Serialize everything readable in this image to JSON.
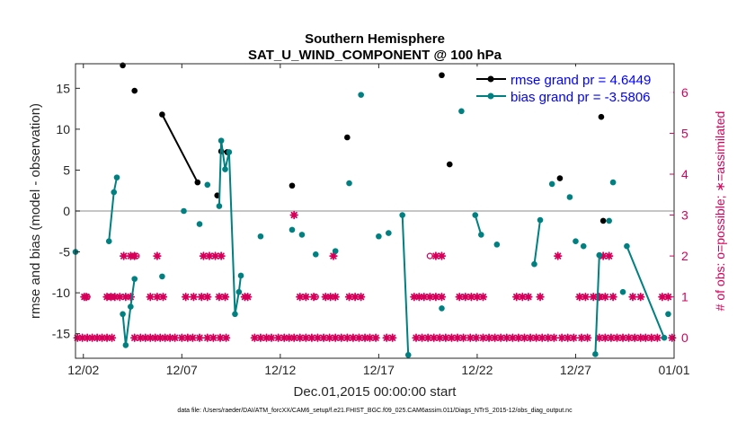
{
  "chart_data": {
    "type": "line",
    "title": "Southern Hemisphere",
    "subtitle": "SAT_U_WIND_COMPONENT @ 100 hPa",
    "xlabel": "Dec.01,2015 00:00:00 start",
    "ylabel": "rmse and bias (model - observation)",
    "y2label": "# of obs: o=possible; ∗=assimilated",
    "xlim": [
      0.6,
      31.0
    ],
    "ylim": [
      -18,
      18
    ],
    "y2lim": [
      -0.5,
      6.7
    ],
    "x_tick_labels": [
      "12/02",
      "12/07",
      "12/12",
      "12/17",
      "12/22",
      "12/27",
      "01/01"
    ],
    "x_ticks": [
      1,
      6,
      11,
      16,
      21,
      26,
      31
    ],
    "y_ticks": [
      -15,
      -10,
      -5,
      0,
      5,
      10,
      15
    ],
    "y2_ticks": [
      0,
      1,
      2,
      3,
      4,
      5,
      6
    ],
    "zero_line": true,
    "grid": false,
    "legend_position": "top-right",
    "colors": {
      "rmse": "#000000",
      "bias": "#008080",
      "obs": "#d6005a",
      "zero": "#b3b3b3",
      "legend_text": "#0000ff"
    },
    "series": [
      {
        "name": "rmse grand pr = 4.6449",
        "key": "rmse",
        "points": [
          [
            3.0,
            17.8
          ],
          [
            3.6,
            14.7
          ],
          [
            5.0,
            11.8
          ],
          [
            6.8,
            3.5
          ],
          [
            7.8,
            1.9
          ],
          [
            8.0,
            7.3
          ],
          [
            8.3,
            7.2
          ],
          [
            11.6,
            3.1
          ],
          [
            14.4,
            9.0
          ],
          [
            19.2,
            16.6
          ],
          [
            19.6,
            5.7
          ],
          [
            25.2,
            4.0
          ],
          [
            27.3,
            11.5
          ],
          [
            27.4,
            -1.2
          ]
        ],
        "segments": [
          [
            2,
            3
          ],
          [
            5,
            6
          ]
        ]
      },
      {
        "name": "bias grand pr = -3.5806",
        "key": "bias",
        "points": [
          [
            0.6,
            -5.0
          ],
          [
            2.3,
            -3.7
          ],
          [
            2.55,
            2.3
          ],
          [
            2.7,
            4.1
          ],
          [
            3.0,
            -12.6
          ],
          [
            3.15,
            -16.4
          ],
          [
            3.4,
            -11.7
          ],
          [
            3.6,
            -8.3
          ],
          [
            5.0,
            -8.0
          ],
          [
            6.1,
            0.0
          ],
          [
            6.9,
            -1.6
          ],
          [
            7.3,
            3.2
          ],
          [
            7.9,
            0.6
          ],
          [
            8.0,
            8.6
          ],
          [
            8.2,
            5.1
          ],
          [
            8.4,
            7.2
          ],
          [
            8.7,
            -12.6
          ],
          [
            8.9,
            -9.9
          ],
          [
            9.0,
            -7.9
          ],
          [
            10.0,
            -3.1
          ],
          [
            11.6,
            -2.3
          ],
          [
            12.1,
            -2.9
          ],
          [
            12.8,
            -5.3
          ],
          [
            13.8,
            -4.9
          ],
          [
            14.5,
            3.4
          ],
          [
            15.1,
            14.2
          ],
          [
            16.0,
            -3.1
          ],
          [
            16.5,
            -2.7
          ],
          [
            17.2,
            -0.5
          ],
          [
            17.5,
            -17.6
          ],
          [
            19.2,
            -11.9
          ],
          [
            20.2,
            12.2
          ],
          [
            20.9,
            -0.5
          ],
          [
            21.2,
            -2.9
          ],
          [
            22.0,
            -4.1
          ],
          [
            23.9,
            -6.5
          ],
          [
            24.2,
            -1.1
          ],
          [
            24.8,
            3.3
          ],
          [
            25.7,
            1.7
          ],
          [
            26.0,
            -3.7
          ],
          [
            26.4,
            -4.3
          ],
          [
            27.0,
            -17.5
          ],
          [
            27.2,
            -5.4
          ],
          [
            27.7,
            -1.2
          ],
          [
            27.9,
            3.5
          ],
          [
            28.4,
            -9.9
          ],
          [
            28.6,
            -4.3
          ],
          [
            30.5,
            -15.5
          ],
          [
            30.7,
            -12.6
          ]
        ],
        "segments": [
          [
            1,
            3
          ],
          [
            4,
            7
          ],
          [
            12,
            18
          ],
          [
            28,
            29
          ],
          [
            32,
            33
          ],
          [
            35,
            36
          ],
          [
            41,
            42
          ],
          [
            46,
            47
          ]
        ]
      }
    ],
    "obs_counts": {
      "assimilated": [
        [
          0.7,
          0
        ],
        [
          0.95,
          0
        ],
        [
          1.2,
          0
        ],
        [
          1.45,
          0
        ],
        [
          1.7,
          0
        ],
        [
          1.95,
          0
        ],
        [
          2.2,
          0
        ],
        [
          2.45,
          0
        ],
        [
          3.6,
          0
        ],
        [
          3.9,
          0
        ],
        [
          4.15,
          0
        ],
        [
          4.4,
          0
        ],
        [
          4.65,
          0
        ],
        [
          4.9,
          0
        ],
        [
          5.15,
          0
        ],
        [
          5.4,
          0
        ],
        [
          5.65,
          0
        ],
        [
          6.0,
          0
        ],
        [
          6.3,
          0
        ],
        [
          6.55,
          0
        ],
        [
          6.9,
          0
        ],
        [
          7.3,
          0
        ],
        [
          7.6,
          0
        ],
        [
          7.95,
          0
        ],
        [
          8.25,
          0
        ],
        [
          9.7,
          0
        ],
        [
          10.0,
          0
        ],
        [
          10.3,
          0
        ],
        [
          10.55,
          0
        ],
        [
          10.9,
          0
        ],
        [
          11.2,
          0
        ],
        [
          11.45,
          0
        ],
        [
          11.7,
          0
        ],
        [
          12.0,
          0
        ],
        [
          12.3,
          0
        ],
        [
          12.6,
          0
        ],
        [
          12.9,
          0
        ],
        [
          13.2,
          0
        ],
        [
          13.5,
          0
        ],
        [
          13.8,
          0
        ],
        [
          14.1,
          0
        ],
        [
          14.4,
          0
        ],
        [
          14.7,
          0
        ],
        [
          15.0,
          0
        ],
        [
          15.3,
          0
        ],
        [
          15.55,
          0
        ],
        [
          15.85,
          0
        ],
        [
          16.4,
          0
        ],
        [
          16.7,
          0
        ],
        [
          17.9,
          0
        ],
        [
          18.2,
          0
        ],
        [
          18.5,
          0
        ],
        [
          18.8,
          0
        ],
        [
          19.1,
          0
        ],
        [
          19.4,
          0
        ],
        [
          19.7,
          0
        ],
        [
          20.0,
          0
        ],
        [
          20.3,
          0
        ],
        [
          20.65,
          0
        ],
        [
          20.95,
          0
        ],
        [
          21.3,
          0
        ],
        [
          21.6,
          0
        ],
        [
          21.9,
          0
        ],
        [
          22.2,
          0
        ],
        [
          22.5,
          0
        ],
        [
          22.8,
          0
        ],
        [
          23.1,
          0
        ],
        [
          23.4,
          0
        ],
        [
          23.7,
          0
        ],
        [
          24.0,
          0
        ],
        [
          24.3,
          0
        ],
        [
          24.6,
          0
        ],
        [
          24.9,
          0
        ],
        [
          25.3,
          0
        ],
        [
          25.6,
          0
        ],
        [
          25.9,
          0
        ],
        [
          26.3,
          0
        ],
        [
          26.6,
          0
        ],
        [
          27.2,
          0
        ],
        [
          27.5,
          0
        ],
        [
          27.8,
          0
        ],
        [
          28.1,
          0
        ],
        [
          28.4,
          0
        ],
        [
          28.7,
          0
        ],
        [
          29.0,
          0
        ],
        [
          29.3,
          0
        ],
        [
          29.55,
          0
        ],
        [
          29.85,
          0
        ],
        [
          30.15,
          0
        ],
        [
          30.9,
          0
        ],
        [
          1.05,
          1
        ],
        [
          1.15,
          1
        ],
        [
          2.2,
          1
        ],
        [
          2.4,
          1
        ],
        [
          2.6,
          1
        ],
        [
          2.85,
          1
        ],
        [
          3.15,
          1
        ],
        [
          3.4,
          1
        ],
        [
          4.4,
          1
        ],
        [
          4.75,
          1
        ],
        [
          5.05,
          1
        ],
        [
          6.2,
          1
        ],
        [
          6.6,
          1
        ],
        [
          7.0,
          1
        ],
        [
          7.3,
          1
        ],
        [
          7.9,
          1
        ],
        [
          8.2,
          1
        ],
        [
          9.2,
          1
        ],
        [
          9.35,
          1
        ],
        [
          12.0,
          1
        ],
        [
          12.3,
          1
        ],
        [
          12.7,
          1
        ],
        [
          13.3,
          1
        ],
        [
          13.55,
          1
        ],
        [
          13.8,
          1
        ],
        [
          14.5,
          1
        ],
        [
          14.8,
          1
        ],
        [
          15.1,
          1
        ],
        [
          17.8,
          1
        ],
        [
          18.05,
          1
        ],
        [
          18.3,
          1
        ],
        [
          18.6,
          1
        ],
        [
          18.9,
          1
        ],
        [
          19.2,
          1
        ],
        [
          20.1,
          1
        ],
        [
          20.4,
          1
        ],
        [
          20.7,
          1
        ],
        [
          21.0,
          1
        ],
        [
          21.3,
          1
        ],
        [
          23.0,
          1
        ],
        [
          23.3,
          1
        ],
        [
          23.6,
          1
        ],
        [
          24.2,
          1
        ],
        [
          26.2,
          1
        ],
        [
          26.5,
          1
        ],
        [
          26.9,
          1
        ],
        [
          27.2,
          1
        ],
        [
          27.5,
          1
        ],
        [
          27.9,
          1
        ],
        [
          28.9,
          1
        ],
        [
          29.3,
          1
        ],
        [
          30.4,
          1
        ],
        [
          30.7,
          1
        ],
        [
          3.05,
          2
        ],
        [
          3.4,
          2
        ],
        [
          3.6,
          2
        ],
        [
          4.75,
          2
        ],
        [
          7.1,
          2
        ],
        [
          7.4,
          2
        ],
        [
          7.7,
          2
        ],
        [
          8.0,
          2
        ],
        [
          13.7,
          2
        ],
        [
          18.9,
          2
        ],
        [
          19.2,
          2
        ],
        [
          25.1,
          2
        ],
        [
          27.4,
          2
        ],
        [
          27.7,
          2
        ],
        [
          11.7,
          3
        ]
      ],
      "possible": [
        [
          1.2,
          1
        ],
        [
          3.7,
          2
        ],
        [
          12.8,
          1
        ],
        [
          18.6,
          2
        ],
        [
          27.2,
          1
        ]
      ]
    }
  },
  "footer": "data file: /Users/raeder/DAI/ATM_forcXX/CAM6_setup/f.e21.FHIST_BGC.f09_025.CAM6assim.011/Diags_NTrS_2015-12/obs_diag_output.nc"
}
